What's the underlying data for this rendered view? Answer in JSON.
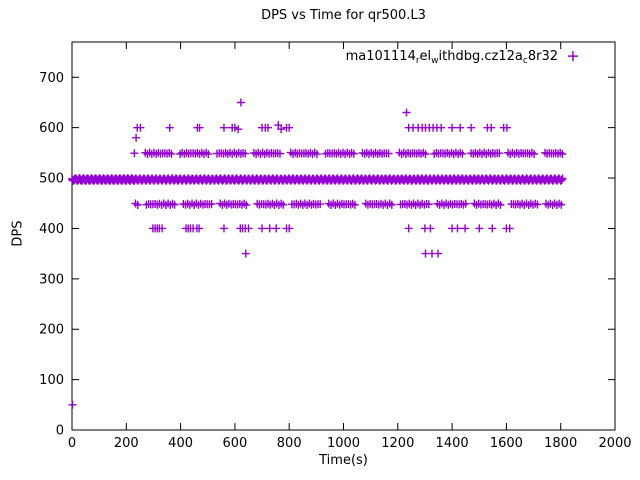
{
  "page": {
    "background": "#ffffff"
  },
  "chart_data": {
    "type": "scatter",
    "title": "DPS vs Time for qr500.L3",
    "xlabel": "Time(s)",
    "ylabel": "DPS",
    "xlim": [
      0,
      2000
    ],
    "ylim": [
      0,
      770
    ],
    "xticks": [
      0,
      200,
      400,
      600,
      800,
      1000,
      1200,
      1400,
      1600,
      1800,
      2000
    ],
    "yticks": [
      0,
      100,
      200,
      300,
      400,
      500,
      600,
      700
    ],
    "grid": false,
    "legend_position": "top-right-inside",
    "marker": "plus",
    "marker_color": "#9400d3",
    "axis_color": "#000000",
    "legend_marker_xy": [
      1845,
      742
    ],
    "series": [
      {
        "name": "ma101114_rel_withdbg.cz12a_c8r32",
        "label_parts": [
          {
            "text": "ma101114",
            "sub": false
          },
          {
            "text": "r",
            "sub": true
          },
          {
            "text": "el",
            "sub": false
          },
          {
            "text": "w",
            "sub": true
          },
          {
            "text": "ithdbg.cz12a",
            "sub": false
          },
          {
            "text": "c",
            "sub": true
          },
          {
            "text": "8r32",
            "sub": false
          }
        ],
        "bands": [
          {
            "y": 497,
            "x_start": 0,
            "x_end": 232,
            "x_step": 2,
            "jitter": 2.5,
            "gapped": false
          },
          {
            "y": 497,
            "x_start": 232,
            "x_end": 1810,
            "x_step": 3.5,
            "jitter": 2.5,
            "gapped": false
          },
          {
            "y": 549,
            "x_start": 230,
            "x_end": 1808,
            "x_step": 8,
            "jitter": 1.5,
            "gapped": true
          },
          {
            "y": 448,
            "x_start": 234,
            "x_end": 1808,
            "x_step": 8,
            "jitter": 1.5,
            "gapped": true
          }
        ],
        "points": [
          [
            2,
            50
          ],
          [
            236,
            580
          ],
          [
            622,
            650
          ],
          [
            1232,
            630
          ],
          [
            240,
            600
          ],
          [
            252,
            600
          ],
          [
            360,
            600
          ],
          [
            462,
            600
          ],
          [
            470,
            600
          ],
          [
            560,
            600
          ],
          [
            590,
            600
          ],
          [
            600,
            600
          ],
          [
            612,
            597
          ],
          [
            700,
            600
          ],
          [
            712,
            600
          ],
          [
            722,
            600
          ],
          [
            760,
            605
          ],
          [
            770,
            597
          ],
          [
            790,
            600
          ],
          [
            800,
            600
          ],
          [
            1240,
            600
          ],
          [
            1256,
            600
          ],
          [
            1275,
            600
          ],
          [
            1290,
            600
          ],
          [
            1302,
            600
          ],
          [
            1316,
            600
          ],
          [
            1330,
            600
          ],
          [
            1344,
            600
          ],
          [
            1360,
            600
          ],
          [
            1400,
            600
          ],
          [
            1430,
            600
          ],
          [
            1470,
            600
          ],
          [
            1530,
            600
          ],
          [
            1544,
            600
          ],
          [
            1590,
            600
          ],
          [
            1602,
            600
          ],
          [
            298,
            400
          ],
          [
            306,
            400
          ],
          [
            314,
            400
          ],
          [
            322,
            400
          ],
          [
            332,
            400
          ],
          [
            420,
            400
          ],
          [
            428,
            400
          ],
          [
            436,
            400
          ],
          [
            446,
            400
          ],
          [
            460,
            400
          ],
          [
            468,
            400
          ],
          [
            560,
            400
          ],
          [
            620,
            400
          ],
          [
            628,
            400
          ],
          [
            638,
            400
          ],
          [
            650,
            400
          ],
          [
            700,
            400
          ],
          [
            728,
            400
          ],
          [
            752,
            400
          ],
          [
            790,
            400
          ],
          [
            800,
            400
          ],
          [
            1240,
            400
          ],
          [
            1300,
            400
          ],
          [
            1320,
            400
          ],
          [
            1400,
            400
          ],
          [
            1420,
            400
          ],
          [
            1448,
            400
          ],
          [
            1500,
            400
          ],
          [
            1548,
            400
          ],
          [
            1600,
            400
          ],
          [
            1612,
            400
          ],
          [
            640,
            350
          ],
          [
            1302,
            350
          ],
          [
            1326,
            350
          ],
          [
            1348,
            350
          ]
        ]
      }
    ]
  }
}
